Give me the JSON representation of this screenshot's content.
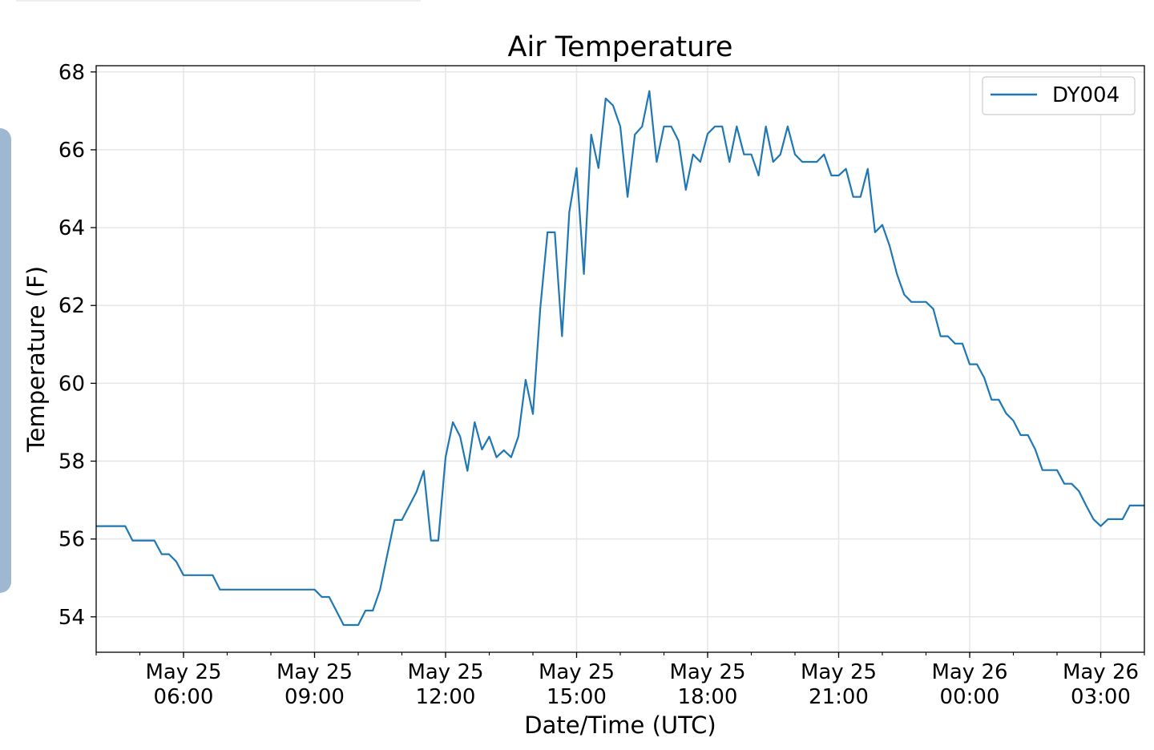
{
  "chart_data": {
    "type": "line",
    "title": "Air Temperature",
    "xlabel": "Date/Time (UTC)",
    "ylabel": "Temperature (F)",
    "x_unit": "hours since May 25 00:00 UTC",
    "x_start": 4,
    "x_step": 0.1666667,
    "xlim": [
      4,
      28
    ],
    "ylim": [
      53.09,
      68.16
    ],
    "grid": true,
    "legend": {
      "position": "top-right",
      "entries": [
        "DY004"
      ]
    },
    "yticks": [
      54,
      56,
      58,
      60,
      62,
      64,
      66,
      68
    ],
    "xticks": [
      {
        "value": 6,
        "line1": "May 25",
        "line2": "06:00"
      },
      {
        "value": 9,
        "line1": "May 25",
        "line2": "09:00"
      },
      {
        "value": 12,
        "line1": "May 25",
        "line2": "12:00"
      },
      {
        "value": 15,
        "line1": "May 25",
        "line2": "15:00"
      },
      {
        "value": 18,
        "line1": "May 25",
        "line2": "18:00"
      },
      {
        "value": 21,
        "line1": "May 25",
        "line2": "21:00"
      },
      {
        "value": 24,
        "line1": "May 26",
        "line2": "00:00"
      },
      {
        "value": 27,
        "line1": "May 26",
        "line2": "03:00"
      }
    ],
    "series": [
      {
        "name": "DY004",
        "color": "#1f77b4",
        "values": [
          56.33,
          56.33,
          56.33,
          56.33,
          56.33,
          55.96,
          55.96,
          55.96,
          55.96,
          55.61,
          55.61,
          55.42,
          55.07,
          55.07,
          55.07,
          55.07,
          55.07,
          54.7,
          54.7,
          54.7,
          54.7,
          54.7,
          54.7,
          54.7,
          54.7,
          54.7,
          54.7,
          54.7,
          54.7,
          54.7,
          54.7,
          54.51,
          54.51,
          54.15,
          53.79,
          53.79,
          53.79,
          54.16,
          54.16,
          54.7,
          55.6,
          56.49,
          56.49,
          56.85,
          57.21,
          57.75,
          55.96,
          55.96,
          58.1,
          59.0,
          58.63,
          57.75,
          59.0,
          58.3,
          58.63,
          58.1,
          58.28,
          58.1,
          58.63,
          60.09,
          59.21,
          61.91,
          63.88,
          63.88,
          61.21,
          64.4,
          65.53,
          62.81,
          66.39,
          65.53,
          67.32,
          67.14,
          66.6,
          64.79,
          66.39,
          66.6,
          67.51,
          65.69,
          66.6,
          66.6,
          66.23,
          64.97,
          65.88,
          65.69,
          66.41,
          66.6,
          66.6,
          65.69,
          66.6,
          65.88,
          65.88,
          65.34,
          66.6,
          65.69,
          65.88,
          66.6,
          65.88,
          65.69,
          65.69,
          65.69,
          65.88,
          65.34,
          65.34,
          65.51,
          64.79,
          64.79,
          65.51,
          63.88,
          64.07,
          63.53,
          62.81,
          62.28,
          62.09,
          62.09,
          62.09,
          61.91,
          61.21,
          61.21,
          61.02,
          61.02,
          60.49,
          60.49,
          60.14,
          59.58,
          59.58,
          59.23,
          59.04,
          58.67,
          58.67,
          58.3,
          57.77,
          57.77,
          57.77,
          57.42,
          57.42,
          57.23,
          56.86,
          56.51,
          56.33,
          56.51,
          56.51,
          56.51,
          56.86,
          56.86,
          56.86
        ]
      }
    ]
  }
}
